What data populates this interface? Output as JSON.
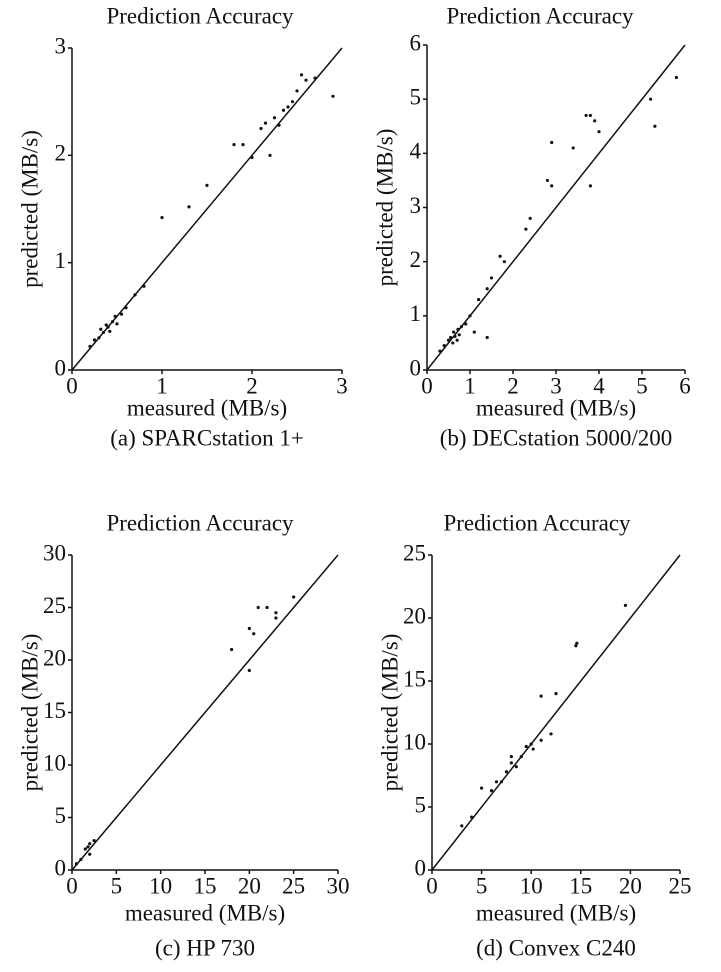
{
  "chart_data": [
    {
      "type": "scatter",
      "title": "Prediction Accuracy",
      "xlabel": "measured (MB/s)",
      "ylabel": "predicted (MB/s)",
      "caption": "(a) SPARCstation 1+",
      "xlim": [
        0,
        3
      ],
      "ylim": [
        0,
        3
      ],
      "xticks": [
        0,
        1,
        2,
        3
      ],
      "yticks": [
        0,
        1,
        2,
        3
      ],
      "color": "#111111",
      "x": [
        0.2,
        0.25,
        0.3,
        0.32,
        0.35,
        0.38,
        0.4,
        0.42,
        0.45,
        0.48,
        0.5,
        0.55,
        0.6,
        0.7,
        0.8,
        1.0,
        1.3,
        1.5,
        1.8,
        1.9,
        2.0,
        2.1,
        2.15,
        2.2,
        2.25,
        2.3,
        2.35,
        2.4,
        2.45,
        2.5,
        2.55,
        2.6,
        2.7,
        2.9
      ],
      "y": [
        0.22,
        0.28,
        0.3,
        0.38,
        0.35,
        0.42,
        0.4,
        0.36,
        0.45,
        0.5,
        0.43,
        0.52,
        0.58,
        0.7,
        0.78,
        1.42,
        1.52,
        1.72,
        2.1,
        2.1,
        1.98,
        2.25,
        2.3,
        2.0,
        2.35,
        2.28,
        2.42,
        2.45,
        2.5,
        2.6,
        2.75,
        2.7,
        2.72,
        2.55
      ]
    },
    {
      "type": "scatter",
      "title": "Prediction Accuracy",
      "xlabel": "measured (MB/s)",
      "ylabel": "predicted (MB/s)",
      "caption": "(b) DECstation 5000/200",
      "xlim": [
        0,
        6
      ],
      "ylim": [
        0,
        6
      ],
      "xticks": [
        0,
        1,
        2,
        3,
        4,
        5,
        6
      ],
      "yticks": [
        0,
        1,
        2,
        3,
        4,
        5,
        6
      ],
      "color": "#111111",
      "x": [
        0.3,
        0.4,
        0.5,
        0.55,
        0.6,
        0.62,
        0.65,
        0.7,
        0.72,
        0.75,
        0.8,
        0.9,
        1.0,
        1.1,
        1.2,
        1.4,
        1.4,
        1.5,
        1.7,
        1.8,
        2.3,
        2.4,
        2.8,
        2.9,
        2.9,
        3.4,
        3.7,
        3.8,
        3.9,
        4.0,
        3.8,
        5.2,
        5.3,
        5.8
      ],
      "y": [
        0.35,
        0.45,
        0.55,
        0.6,
        0.5,
        0.7,
        0.62,
        0.55,
        0.75,
        0.65,
        0.8,
        0.85,
        1.0,
        0.7,
        1.3,
        1.5,
        0.6,
        1.7,
        2.1,
        2.0,
        2.6,
        2.8,
        3.5,
        3.4,
        4.2,
        4.1,
        4.7,
        4.7,
        4.6,
        4.4,
        3.4,
        5.0,
        4.5,
        5.4
      ]
    },
    {
      "type": "scatter",
      "title": "Prediction Accuracy",
      "xlabel": "measured (MB/s)",
      "ylabel": "predicted (MB/s)",
      "caption": "(c) HP 730",
      "xlim": [
        0,
        30
      ],
      "ylim": [
        0,
        30
      ],
      "xticks": [
        0,
        5,
        10,
        15,
        20,
        25,
        30
      ],
      "yticks": [
        0,
        5,
        10,
        15,
        20,
        25,
        30
      ],
      "color": "#111111",
      "x": [
        0.5,
        1,
        1.5,
        1.8,
        2,
        2,
        2.5,
        18,
        20,
        20,
        20.5,
        21,
        22,
        23,
        23,
        25
      ],
      "y": [
        0.6,
        1,
        2,
        2.2,
        2.5,
        1.5,
        2.8,
        21,
        19,
        23,
        22.5,
        25,
        25,
        24.5,
        24,
        26
      ]
    },
    {
      "type": "scatter",
      "title": "Prediction Accuracy",
      "xlabel": "measured (MB/s)",
      "ylabel": "predicted (MB/s)",
      "caption": "(d) Convex C240",
      "xlim": [
        0,
        25
      ],
      "ylim": [
        0,
        25
      ],
      "xticks": [
        0,
        5,
        10,
        15,
        20,
        25
      ],
      "yticks": [
        0,
        5,
        10,
        15,
        20,
        25
      ],
      "color": "#111111",
      "x": [
        3,
        4,
        5,
        6,
        6.5,
        7,
        7.5,
        8,
        8,
        8.5,
        9,
        9.5,
        10,
        10.2,
        11,
        11,
        12,
        12.5,
        14.5,
        14.6,
        19.5
      ],
      "y": [
        3.5,
        4.2,
        6.5,
        6.3,
        7,
        7,
        7.8,
        8.5,
        9,
        8.2,
        9,
        9.8,
        10,
        9.6,
        10.3,
        13.8,
        10.8,
        14,
        17.8,
        18,
        21
      ]
    }
  ]
}
